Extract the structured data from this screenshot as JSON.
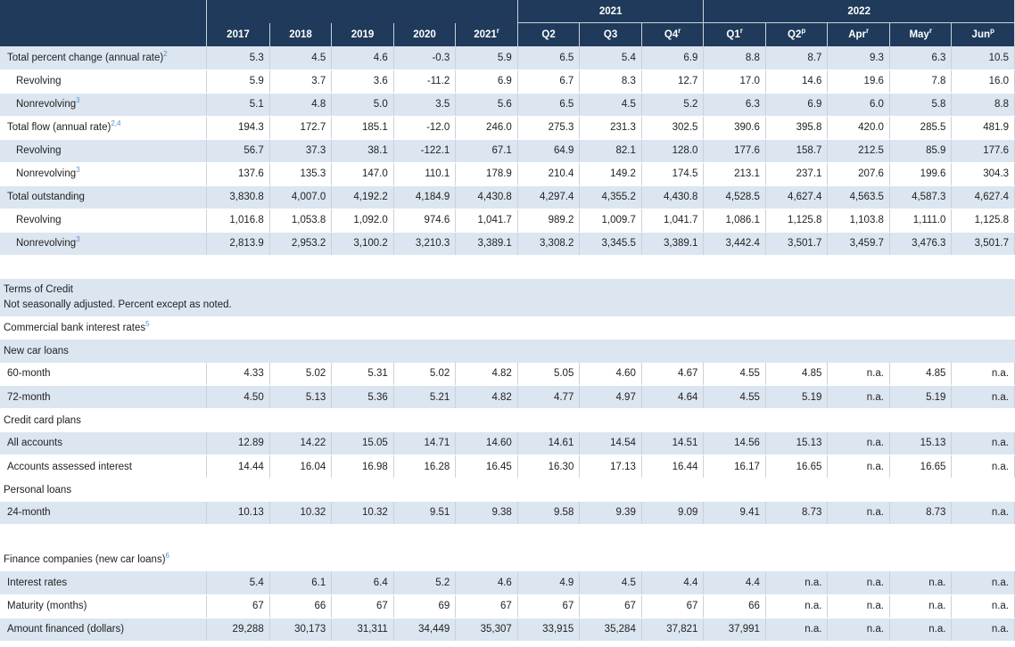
{
  "header": {
    "year_2021": "2021",
    "year_2022": "2022",
    "columns": [
      {
        "label": "2017",
        "sup": ""
      },
      {
        "label": "2018",
        "sup": ""
      },
      {
        "label": "2019",
        "sup": ""
      },
      {
        "label": "2020",
        "sup": ""
      },
      {
        "label": "2021",
        "sup": "r"
      },
      {
        "label": "Q2",
        "sup": ""
      },
      {
        "label": "Q3",
        "sup": ""
      },
      {
        "label": "Q4",
        "sup": "r"
      },
      {
        "label": "Q1",
        "sup": "r"
      },
      {
        "label": "Q2",
        "sup": "p"
      },
      {
        "label": "Apr",
        "sup": "r"
      },
      {
        "label": "May",
        "sup": "r"
      },
      {
        "label": "Jun",
        "sup": "p"
      }
    ]
  },
  "consumer_credit": [
    {
      "label": "Total percent change (annual rate)",
      "sup": "2",
      "indent": false,
      "values": [
        "5.3",
        "4.5",
        "4.6",
        "-0.3",
        "5.9",
        "6.5",
        "5.4",
        "6.9",
        "8.8",
        "8.7",
        "9.3",
        "6.3",
        "10.5"
      ]
    },
    {
      "label": "Revolving",
      "sup": "",
      "indent": true,
      "values": [
        "5.9",
        "3.7",
        "3.6",
        "-11.2",
        "6.9",
        "6.7",
        "8.3",
        "12.7",
        "17.0",
        "14.6",
        "19.6",
        "7.8",
        "16.0"
      ]
    },
    {
      "label": "Nonrevolving",
      "sup": "3",
      "indent": true,
      "values": [
        "5.1",
        "4.8",
        "5.0",
        "3.5",
        "5.6",
        "6.5",
        "4.5",
        "5.2",
        "6.3",
        "6.9",
        "6.0",
        "5.8",
        "8.8"
      ]
    },
    {
      "label": "Total flow (annual rate)",
      "sup": "2,4",
      "indent": false,
      "values": [
        "194.3",
        "172.7",
        "185.1",
        "-12.0",
        "246.0",
        "275.3",
        "231.3",
        "302.5",
        "390.6",
        "395.8",
        "420.0",
        "285.5",
        "481.9"
      ]
    },
    {
      "label": "Revolving",
      "sup": "",
      "indent": true,
      "values": [
        "56.7",
        "37.3",
        "38.1",
        "-122.1",
        "67.1",
        "64.9",
        "82.1",
        "128.0",
        "177.6",
        "158.7",
        "212.5",
        "85.9",
        "177.6"
      ]
    },
    {
      "label": "Nonrevolving",
      "sup": "3",
      "indent": true,
      "values": [
        "137.6",
        "135.3",
        "147.0",
        "110.1",
        "178.9",
        "210.4",
        "149.2",
        "174.5",
        "213.1",
        "237.1",
        "207.6",
        "199.6",
        "304.3"
      ]
    },
    {
      "label": "Total outstanding",
      "sup": "",
      "indent": false,
      "values": [
        "3,830.8",
        "4,007.0",
        "4,192.2",
        "4,184.9",
        "4,430.8",
        "4,297.4",
        "4,355.2",
        "4,430.8",
        "4,528.5",
        "4,627.4",
        "4,563.5",
        "4,587.3",
        "4,627.4"
      ]
    },
    {
      "label": "Revolving",
      "sup": "",
      "indent": true,
      "values": [
        "1,016.8",
        "1,053.8",
        "1,092.0",
        "974.6",
        "1,041.7",
        "989.2",
        "1,009.7",
        "1,041.7",
        "1,086.1",
        "1,125.8",
        "1,103.8",
        "1,111.0",
        "1,125.8"
      ]
    },
    {
      "label": "Nonrevolving",
      "sup": "3",
      "indent": true,
      "values": [
        "2,813.9",
        "2,953.2",
        "3,100.2",
        "3,210.3",
        "3,389.1",
        "3,308.2",
        "3,345.5",
        "3,389.1",
        "3,442.4",
        "3,501.7",
        "3,459.7",
        "3,476.3",
        "3,501.7"
      ]
    }
  ],
  "terms": {
    "title": "Terms of Credit",
    "subtitle": "Not seasonally adjusted. Percent except as noted.",
    "commercial_label": "Commercial bank interest rates",
    "commercial_sup": "5",
    "new_car_label": "New car loans",
    "new_car_rows": [
      {
        "label": "60-month",
        "values": [
          "4.33",
          "5.02",
          "5.31",
          "5.02",
          "4.82",
          "5.05",
          "4.60",
          "4.67",
          "4.55",
          "4.85",
          "n.a.",
          "4.85",
          "n.a."
        ]
      },
      {
        "label": "72-month",
        "values": [
          "4.50",
          "5.13",
          "5.36",
          "5.21",
          "4.82",
          "4.77",
          "4.97",
          "4.64",
          "4.55",
          "5.19",
          "n.a.",
          "5.19",
          "n.a."
        ]
      }
    ],
    "credit_card_label": "Credit card plans",
    "credit_card_rows": [
      {
        "label": "All accounts",
        "values": [
          "12.89",
          "14.22",
          "15.05",
          "14.71",
          "14.60",
          "14.61",
          "14.54",
          "14.51",
          "14.56",
          "15.13",
          "n.a.",
          "15.13",
          "n.a."
        ]
      },
      {
        "label": "Accounts assessed interest",
        "values": [
          "14.44",
          "16.04",
          "16.98",
          "16.28",
          "16.45",
          "16.30",
          "17.13",
          "16.44",
          "16.17",
          "16.65",
          "n.a.",
          "16.65",
          "n.a."
        ]
      }
    ],
    "personal_label": "Personal loans",
    "personal_rows": [
      {
        "label": "24-month",
        "values": [
          "10.13",
          "10.32",
          "10.32",
          "9.51",
          "9.38",
          "9.58",
          "9.39",
          "9.09",
          "9.41",
          "8.73",
          "n.a.",
          "8.73",
          "n.a."
        ]
      }
    ],
    "finance_label": "Finance companies (new car loans)",
    "finance_sup": "6",
    "finance_rows": [
      {
        "label": "Interest rates",
        "values": [
          "5.4",
          "6.1",
          "6.4",
          "5.2",
          "4.6",
          "4.9",
          "4.5",
          "4.4",
          "4.4",
          "n.a.",
          "n.a.",
          "n.a.",
          "n.a."
        ]
      },
      {
        "label": "Maturity (months)",
        "values": [
          "67",
          "66",
          "67",
          "69",
          "67",
          "67",
          "67",
          "67",
          "66",
          "n.a.",
          "n.a.",
          "n.a.",
          "n.a."
        ]
      },
      {
        "label": "Amount financed (dollars)",
        "values": [
          "29,288",
          "30,173",
          "31,311",
          "34,449",
          "35,307",
          "33,915",
          "35,284",
          "37,821",
          "37,991",
          "n.a.",
          "n.a.",
          "n.a.",
          "n.a."
        ]
      }
    ]
  }
}
